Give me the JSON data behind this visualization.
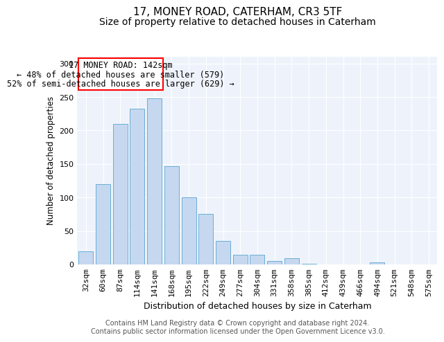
{
  "title1": "17, MONEY ROAD, CATERHAM, CR3 5TF",
  "title2": "Size of property relative to detached houses in Caterham",
  "xlabel": "Distribution of detached houses by size in Caterham",
  "ylabel": "Number of detached properties",
  "bar_color": "#c5d8f0",
  "bar_edge_color": "#6aaed6",
  "background_color": "#eef3fb",
  "categories": [
    "32sqm",
    "60sqm",
    "87sqm",
    "114sqm",
    "141sqm",
    "168sqm",
    "195sqm",
    "222sqm",
    "249sqm",
    "277sqm",
    "304sqm",
    "331sqm",
    "358sqm",
    "385sqm",
    "412sqm",
    "439sqm",
    "466sqm",
    "494sqm",
    "521sqm",
    "548sqm",
    "575sqm"
  ],
  "values": [
    20,
    120,
    210,
    233,
    248,
    147,
    100,
    75,
    35,
    14,
    14,
    5,
    9,
    1,
    0,
    0,
    0,
    3,
    0,
    0,
    0
  ],
  "ylim": [
    0,
    310
  ],
  "yticks": [
    0,
    50,
    100,
    150,
    200,
    250,
    300
  ],
  "ann_line1": "17 MONEY ROAD: 142sqm",
  "ann_line2": "← 48% of detached houses are smaller (579)",
  "ann_line3": "52% of semi-detached houses are larger (629) →",
  "footer1": "Contains HM Land Registry data © Crown copyright and database right 2024.",
  "footer2": "Contains public sector information licensed under the Open Government Licence v3.0.",
  "title1_fontsize": 11,
  "title2_fontsize": 10,
  "xlabel_fontsize": 9,
  "ylabel_fontsize": 8.5,
  "tick_fontsize": 8,
  "annotation_fontsize": 8.5,
  "footer_fontsize": 7
}
